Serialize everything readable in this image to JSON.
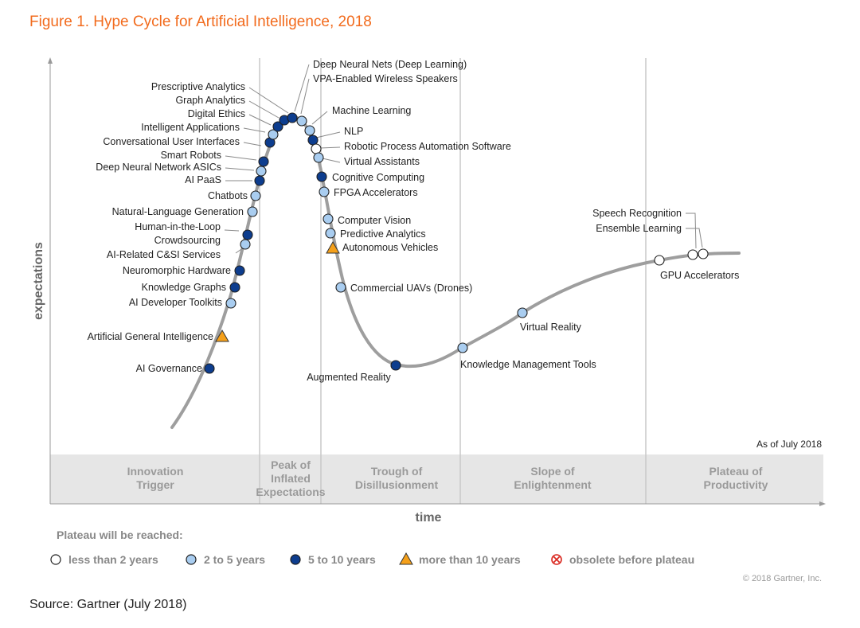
{
  "title": "Figure 1. Hype Cycle for Artificial Intelligence, 2018",
  "source": "Source: Gartner (July 2018)",
  "copyright": "© 2018 Gartner, Inc.",
  "as_of": "As of July 2018",
  "colors": {
    "title": "#f26b1d",
    "less_than_2": "#ffffff",
    "two_to_five": "#a9cdf0",
    "five_to_ten": "#0d3d8e",
    "more_than_10": "#f5a01a",
    "obsolete": "#d9251d",
    "curve": "#9e9e9e",
    "phase_band": "#e6e6e6"
  },
  "chart_data": {
    "type": "hype-cycle",
    "xlabel": "time",
    "ylabel": "expectations",
    "phases": [
      {
        "name": "Innovation Trigger",
        "lines": [
          "Innovation",
          "Trigger"
        ]
      },
      {
        "name": "Peak of Inflated Expectations",
        "lines": [
          "Peak of",
          "Inflated",
          "Expectations"
        ]
      },
      {
        "name": "Trough of Disillusionment",
        "lines": [
          "Trough of",
          "Disillusionment"
        ]
      },
      {
        "name": "Slope of Enlightenment",
        "lines": [
          "Slope of",
          "Enlightenment"
        ]
      },
      {
        "name": "Plateau of Productivity",
        "lines": [
          "Plateau of",
          "Productivity"
        ]
      }
    ],
    "legend": {
      "title": "Plateau will be reached:",
      "items": [
        {
          "key": "lt2",
          "label": "less than 2 years"
        },
        {
          "key": "2to5",
          "label": "2 to 5 years"
        },
        {
          "key": "5to10",
          "label": "5 to 10 years"
        },
        {
          "key": "gt10",
          "label": "more than 10 years"
        },
        {
          "key": "obsolete",
          "label": "obsolete before plateau"
        }
      ]
    },
    "technologies": [
      {
        "name": "AI Governance",
        "category": "5to10"
      },
      {
        "name": "Artificial General Intelligence",
        "category": "gt10"
      },
      {
        "name": "AI Developer Toolkits",
        "category": "2to5"
      },
      {
        "name": "Knowledge Graphs",
        "category": "5to10"
      },
      {
        "name": "Neuromorphic Hardware",
        "category": "5to10"
      },
      {
        "name": "AI-Related C&SI Services",
        "category": "2to5"
      },
      {
        "name": "Crowdsourcing",
        "category": "2to5"
      },
      {
        "name": "Human-in-the-Loop",
        "category": "5to10"
      },
      {
        "name": "Natural-Language Generation",
        "category": "2to5"
      },
      {
        "name": "Chatbots",
        "category": "2to5"
      },
      {
        "name": "AI PaaS",
        "category": "5to10"
      },
      {
        "name": "Deep Neural Network ASICs",
        "category": "2to5"
      },
      {
        "name": "Smart Robots",
        "category": "5to10"
      },
      {
        "name": "Conversational User Interfaces",
        "category": "5to10"
      },
      {
        "name": "Intelligent Applications",
        "category": "2to5"
      },
      {
        "name": "Digital Ethics",
        "category": "5to10"
      },
      {
        "name": "Graph Analytics",
        "category": "5to10"
      },
      {
        "name": "Prescriptive Analytics",
        "category": "5to10"
      },
      {
        "name": "Deep Neural Nets (Deep Learning)",
        "category": "2to5"
      },
      {
        "name": "VPA-Enabled Wireless Speakers",
        "category": "2to5"
      },
      {
        "name": "Machine Learning",
        "category": "2to5"
      },
      {
        "name": "NLP",
        "category": "5to10"
      },
      {
        "name": "Robotic Process Automation Software",
        "category": "lt2"
      },
      {
        "name": "Virtual Assistants",
        "category": "2to5"
      },
      {
        "name": "Cognitive Computing",
        "category": "5to10"
      },
      {
        "name": "FPGA Accelerators",
        "category": "2to5"
      },
      {
        "name": "Computer Vision",
        "category": "2to5"
      },
      {
        "name": "Predictive Analytics",
        "category": "2to5"
      },
      {
        "name": "Autonomous Vehicles",
        "category": "gt10"
      },
      {
        "name": "Commercial UAVs (Drones)",
        "category": "2to5"
      },
      {
        "name": "Augmented Reality",
        "category": "5to10"
      },
      {
        "name": "Knowledge Management Tools",
        "category": "2to5"
      },
      {
        "name": "Virtual Reality",
        "category": "2to5"
      },
      {
        "name": "GPU Accelerators",
        "category": "lt2"
      },
      {
        "name": "Speech Recognition",
        "category": "lt2"
      },
      {
        "name": "Ensemble Learning",
        "category": "lt2"
      }
    ]
  }
}
